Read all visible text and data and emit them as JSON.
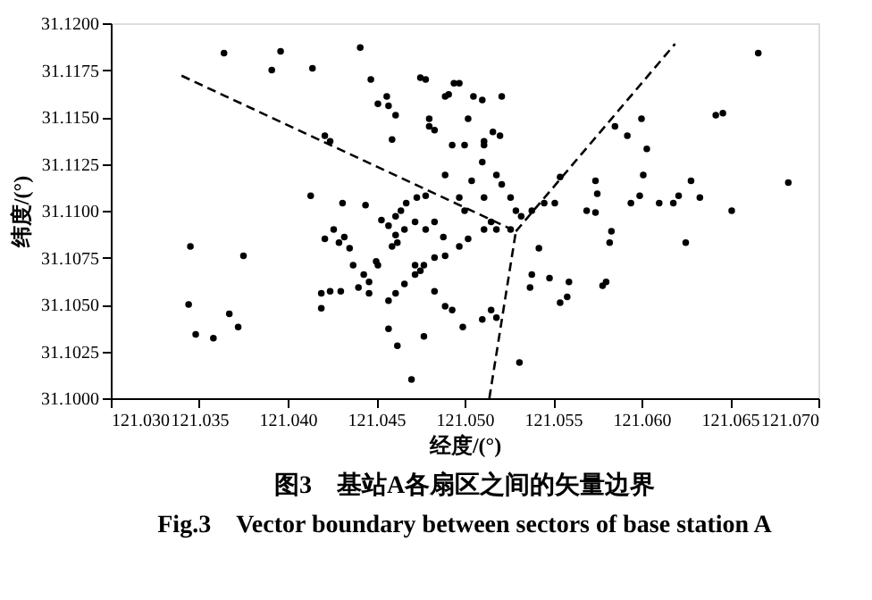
{
  "chart_data": {
    "type": "scatter",
    "title": "图3　基站A各扇区之间的矢量边界",
    "subtitle": "Fig.3　Vector boundary between sectors of base station A",
    "xlabel": "经度/(°)",
    "ylabel": "纬度/(°)",
    "xlim": [
      121.03,
      121.07
    ],
    "ylim": [
      31.1,
      31.12
    ],
    "xticks": [
      {
        "value": 121.03,
        "label": "121.030"
      },
      {
        "value": 121.035,
        "label": "121.035"
      },
      {
        "value": 121.04,
        "label": "121.040"
      },
      {
        "value": 121.045,
        "label": "121.045"
      },
      {
        "value": 121.05,
        "label": "121.050"
      },
      {
        "value": 121.055,
        "label": "121.055"
      },
      {
        "value": 121.06,
        "label": "121.060"
      },
      {
        "value": 121.065,
        "label": "121.065"
      },
      {
        "value": 121.07,
        "label": "121.070"
      }
    ],
    "yticks": [
      {
        "value": 31.1,
        "label": "31.1000"
      },
      {
        "value": 31.1025,
        "label": "31.1025"
      },
      {
        "value": 31.105,
        "label": "31.1050"
      },
      {
        "value": 31.1075,
        "label": "31.1075"
      },
      {
        "value": 31.11,
        "label": "31.1100"
      },
      {
        "value": 31.1125,
        "label": "31.1125"
      },
      {
        "value": 31.115,
        "label": "31.1150"
      },
      {
        "value": 31.1175,
        "label": "31.1175"
      },
      {
        "value": 31.12,
        "label": "31.1200"
      }
    ],
    "grid": false,
    "series": [
      {
        "type": "scatter",
        "marker": "circle",
        "color": "#000000",
        "x": [
          121.0364,
          121.0396,
          121.0391,
          121.0441,
          121.0414,
          121.0447,
          121.0457,
          121.0451,
          121.0461,
          121.0456,
          121.0475,
          121.0478,
          121.0489,
          121.0494,
          121.0505,
          121.051,
          121.0421,
          121.0424,
          121.0459,
          121.048,
          121.0483,
          121.0413,
          121.0431,
          121.0444,
          121.0345,
          121.0375,
          121.0344,
          121.0348,
          121.0358,
          121.0367,
          121.0372,
          121.047,
          121.0477,
          121.0457,
          121.0462,
          121.0421,
          121.0429,
          121.0435,
          121.0426,
          121.0432,
          121.0437,
          121.0443,
          121.0446,
          121.045,
          121.0419,
          121.0424,
          121.043,
          121.044,
          121.0419,
          121.0457,
          121.0461,
          121.0466,
          121.0472,
          121.0477,
          121.0483,
          121.0489,
          121.0497,
          121.0502,
          121.0453,
          121.0457,
          121.0461,
          121.0464,
          121.0467,
          121.0473,
          121.0478,
          121.0461,
          121.0459,
          121.0462,
          121.0466,
          121.0472,
          121.0478,
          121.0483,
          121.0488,
          121.0472,
          121.0475,
          121.0489,
          121.0493,
          121.0499,
          121.0446,
          121.0451,
          121.0483,
          121.05,
          121.0489,
          121.0504,
          121.051,
          121.0511,
          121.05,
          121.0511,
          121.0497,
          121.0511,
          121.0515,
          121.0491,
          121.0497,
          121.0521,
          121.048,
          121.0502,
          121.0516,
          121.052,
          121.0511,
          121.0493,
          121.0518,
          121.0521,
          121.0526,
          121.0529,
          121.0532,
          121.0538,
          121.0545,
          121.0551,
          121.0526,
          121.0518,
          121.0554,
          121.0574,
          121.0575,
          121.0569,
          121.0574,
          121.0583,
          121.0582,
          121.0592,
          121.0585,
          121.06,
          121.0603,
          121.0601,
          121.0599,
          121.0594,
          121.061,
          121.0618,
          121.0621,
          121.0628,
          121.0633,
          121.0625,
          121.0651,
          121.0642,
          121.0646,
          121.0666,
          121.0683,
          121.0531,
          121.0542,
          121.0538,
          121.0537,
          121.0548,
          121.0559,
          121.0558,
          121.0554,
          121.058,
          121.0578,
          121.0515,
          121.051,
          121.0518
        ],
        "values": [
          31.1184,
          31.1185,
          31.1175,
          31.1187,
          31.1176,
          31.117,
          31.1156,
          31.1157,
          31.1151,
          31.1161,
          31.1171,
          31.117,
          31.1161,
          31.1168,
          31.1161,
          31.1159,
          31.114,
          31.1137,
          31.1138,
          31.1149,
          31.1143,
          31.1108,
          31.1104,
          31.1103,
          31.1081,
          31.1076,
          31.105,
          31.1034,
          31.1032,
          31.1045,
          31.1038,
          31.101,
          31.1033,
          31.1037,
          31.1028,
          31.1085,
          31.1083,
          31.108,
          31.109,
          31.1086,
          31.1071,
          31.1066,
          31.1062,
          31.1073,
          31.1056,
          31.1057,
          31.1057,
          31.1059,
          31.1048,
          31.1052,
          31.1056,
          31.1061,
          31.1066,
          31.1071,
          31.1075,
          31.1076,
          31.1081,
          31.1085,
          31.1095,
          31.1092,
          31.1097,
          31.11,
          31.1104,
          31.1107,
          31.1108,
          31.1087,
          31.1081,
          31.1083,
          31.109,
          31.1094,
          31.109,
          31.1094,
          31.1086,
          31.1071,
          31.1068,
          31.1049,
          31.1047,
          31.1038,
          31.1056,
          31.1071,
          31.1057,
          31.11,
          31.1119,
          31.1116,
          31.1126,
          31.1135,
          31.1135,
          31.1107,
          31.1107,
          31.109,
          31.1094,
          31.1162,
          31.1168,
          31.1161,
          31.1145,
          31.1149,
          31.1142,
          31.114,
          31.1137,
          31.1135,
          31.1119,
          31.1114,
          31.1107,
          31.11,
          31.1097,
          31.11,
          31.1104,
          31.1104,
          31.109,
          31.109,
          31.1118,
          31.1116,
          31.1109,
          31.11,
          31.1099,
          31.1089,
          31.1083,
          31.114,
          31.1145,
          31.1149,
          31.1133,
          31.1119,
          31.1108,
          31.1104,
          31.1104,
          31.1104,
          31.1108,
          31.1116,
          31.1107,
          31.1083,
          31.11,
          31.1151,
          31.1152,
          31.1184,
          31.1115,
          31.1019,
          31.108,
          31.1066,
          31.1059,
          31.1064,
          31.1062,
          31.1054,
          31.1051,
          31.1062,
          31.106,
          31.1047,
          31.1042,
          31.1043
        ]
      },
      {
        "type": "line",
        "color": "#000000",
        "line_style": "dashed",
        "x": [
          121.034,
          121.0529
        ],
        "values": [
          31.1172,
          31.1089
        ]
      },
      {
        "type": "line",
        "color": "#000000",
        "line_style": "dashed",
        "x": [
          121.0619,
          121.0529
        ],
        "values": [
          31.1189,
          31.1089
        ]
      },
      {
        "type": "line",
        "color": "#000000",
        "line_style": "dashed",
        "x": [
          121.0514,
          121.0529
        ],
        "values": [
          31.1,
          31.1089
        ]
      }
    ]
  }
}
